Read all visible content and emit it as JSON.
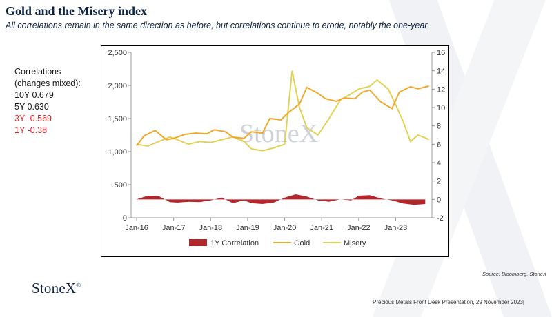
{
  "title": "Gold and the Misery index",
  "subtitle": "All correlations remain in the same direction as before, but correlations continue to erode, notably the one-year",
  "correlations": {
    "heading_line1": "Correlations",
    "heading_line2": "(changes mixed):",
    "items": [
      {
        "label": "10Y 0.679",
        "color": "#1a1a1a"
      },
      {
        "label": "5Y 0.630",
        "color": "#1a1a1a"
      },
      {
        "label": "3Y -0.569",
        "color": "#e02020"
      },
      {
        "label": "1Y -0.38",
        "color": "#e02020"
      }
    ]
  },
  "chart_watermark": "StoneX",
  "source": "Source: Bloomberg, StoneX",
  "logo": "StoneX",
  "footer": "Precious Metals Front Desk Presentation, 29 November 2023|",
  "colors": {
    "title": "#0e2340",
    "gold": "#f0a82a",
    "misery": "#e2d155",
    "correlation": "#b3262b",
    "negative_text": "#e02020"
  },
  "chart_data": {
    "type": "line",
    "x_labels": [
      "Jan-16",
      "Jan-17",
      "Jan-18",
      "Jan-19",
      "Jan-20",
      "Jan-21",
      "Jan-22",
      "Jan-23"
    ],
    "left_axis": {
      "ticks": [
        "2,500",
        "2,000",
        "1,500",
        "1,000",
        "500",
        "0"
      ],
      "range": [
        0,
        2500
      ]
    },
    "right_axis": {
      "ticks": [
        "16",
        "14",
        "12",
        "10",
        "8",
        "6",
        "4",
        "2",
        "0",
        "-2"
      ],
      "range": [
        -2,
        16
      ]
    },
    "legend_position": "bottom",
    "grid": false,
    "series": [
      {
        "name": "1Y Correlation",
        "type": "area",
        "axis": "right",
        "x": [
          2016.0,
          2016.3,
          2016.6,
          2016.9,
          2017.1,
          2017.4,
          2017.7,
          2018.0,
          2018.3,
          2018.6,
          2018.9,
          2019.1,
          2019.4,
          2019.7,
          2020.0,
          2020.3,
          2020.6,
          2020.9,
          2021.2,
          2021.5,
          2021.8,
          2022.0,
          2022.3,
          2022.6,
          2022.9,
          2023.2,
          2023.5,
          2023.8
        ],
        "values": [
          0.0,
          0.4,
          0.35,
          -0.3,
          -0.35,
          -0.25,
          -0.3,
          -0.1,
          0.2,
          -0.4,
          -0.1,
          -0.4,
          -0.5,
          -0.35,
          0.2,
          0.55,
          0.3,
          -0.1,
          -0.25,
          0.0,
          -0.1,
          0.4,
          0.45,
          0.1,
          -0.1,
          -0.45,
          -0.6,
          -0.5
        ]
      },
      {
        "name": "Gold",
        "type": "line",
        "axis": "left",
        "x": [
          2016.0,
          2016.2,
          2016.5,
          2016.8,
          2017.0,
          2017.3,
          2017.6,
          2017.9,
          2018.1,
          2018.4,
          2018.6,
          2018.9,
          2019.1,
          2019.4,
          2019.6,
          2019.9,
          2020.1,
          2020.4,
          2020.6,
          2020.9,
          2021.1,
          2021.4,
          2021.6,
          2021.9,
          2022.1,
          2022.3,
          2022.6,
          2022.9,
          2023.1,
          2023.4,
          2023.6,
          2023.9
        ],
        "values": [
          1090,
          1240,
          1320,
          1180,
          1200,
          1260,
          1280,
          1270,
          1330,
          1300,
          1220,
          1200,
          1300,
          1280,
          1500,
          1480,
          1590,
          1720,
          1970,
          1880,
          1800,
          1760,
          1810,
          1800,
          1900,
          1930,
          1750,
          1650,
          1900,
          1980,
          1950,
          1990
        ]
      },
      {
        "name": "Misery",
        "type": "line",
        "axis": "right",
        "x": [
          2016.0,
          2016.3,
          2016.6,
          2016.9,
          2017.1,
          2017.4,
          2017.7,
          2018.0,
          2018.3,
          2018.6,
          2018.9,
          2019.1,
          2019.4,
          2019.7,
          2020.0,
          2020.2,
          2020.4,
          2020.6,
          2020.9,
          2021.2,
          2021.5,
          2021.8,
          2022.0,
          2022.3,
          2022.5,
          2022.8,
          2023.0,
          2023.2,
          2023.4,
          2023.6,
          2023.8,
          2023.9
        ],
        "values": [
          6.0,
          5.8,
          6.3,
          6.8,
          6.5,
          6.0,
          6.3,
          6.2,
          6.5,
          6.8,
          6.3,
          5.5,
          5.3,
          5.6,
          6.0,
          14.0,
          10.0,
          7.8,
          7.0,
          8.8,
          10.8,
          11.5,
          12.0,
          12.3,
          13.0,
          12.0,
          10.3,
          8.5,
          6.3,
          7.0,
          6.7,
          6.5
        ]
      }
    ]
  }
}
